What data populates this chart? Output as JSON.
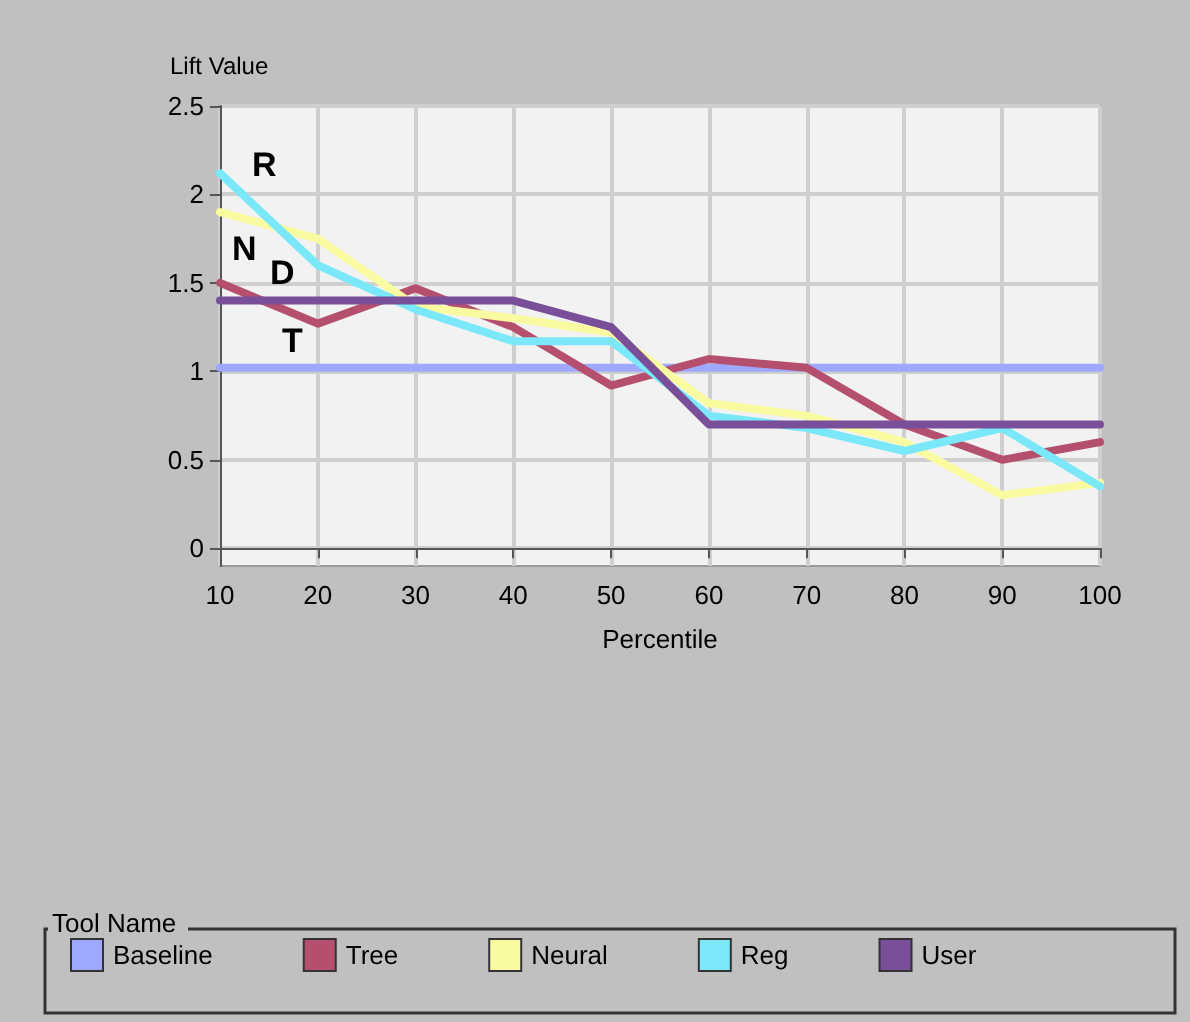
{
  "chart_data": {
    "type": "line",
    "ylabel": "Lift Value",
    "xlabel": "Percentile",
    "legend_title": "Tool Name",
    "x": [
      10,
      20,
      30,
      40,
      50,
      60,
      70,
      80,
      90,
      100
    ],
    "series": [
      {
        "name": "Baseline",
        "color": "#9fa8ff",
        "values": [
          1.02,
          1.02,
          1.02,
          1.02,
          1.02,
          1.02,
          1.02,
          1.02,
          1.02,
          1.02
        ]
      },
      {
        "name": "Tree",
        "color": "#b4506e",
        "values": [
          1.5,
          1.27,
          1.47,
          1.25,
          0.92,
          1.07,
          1.02,
          0.7,
          0.5,
          0.6
        ]
      },
      {
        "name": "Neural",
        "color": "#fafaa0",
        "values": [
          1.9,
          1.75,
          1.37,
          1.3,
          1.22,
          0.82,
          0.75,
          0.6,
          0.3,
          0.37
        ]
      },
      {
        "name": "Reg",
        "color": "#7ae8f8",
        "values": [
          2.12,
          1.6,
          1.35,
          1.17,
          1.17,
          0.75,
          0.68,
          0.55,
          0.68,
          0.35
        ]
      },
      {
        "name": "User",
        "color": "#7a4f9a",
        "values": [
          1.4,
          1.4,
          1.4,
          1.4,
          1.25,
          0.7,
          0.7,
          0.7,
          0.7,
          0.7
        ]
      }
    ],
    "annotations": [
      "R",
      "N",
      "D",
      "T"
    ],
    "xlim": [
      10,
      100
    ],
    "xticks": [
      10,
      20,
      30,
      40,
      50,
      60,
      70,
      80,
      90,
      100
    ],
    "ylim": [
      -0.1,
      2.5
    ],
    "yticks": [
      0,
      0.5,
      1,
      1.5,
      2,
      2.5
    ],
    "grid": true,
    "legend": "bottom",
    "marker": "none",
    "line_style": "solid"
  }
}
